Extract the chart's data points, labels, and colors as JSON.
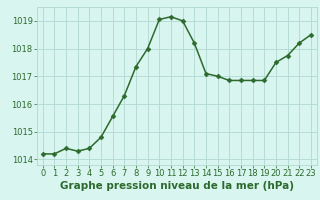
{
  "x": [
    0,
    1,
    2,
    3,
    4,
    5,
    6,
    7,
    8,
    9,
    10,
    11,
    12,
    13,
    14,
    15,
    16,
    17,
    18,
    19,
    20,
    21,
    22,
    23
  ],
  "y": [
    1014.2,
    1014.2,
    1014.4,
    1014.3,
    1014.4,
    1014.8,
    1015.55,
    1016.3,
    1017.35,
    1018.0,
    1019.05,
    1019.15,
    1019.0,
    1018.2,
    1017.1,
    1017.0,
    1016.85,
    1016.85,
    1016.85,
    1016.85,
    1017.5,
    1017.75,
    1018.2,
    1018.5
  ],
  "line_color": "#2d6a2d",
  "marker": "D",
  "marker_size": 2.5,
  "linewidth": 1.1,
  "bg_color": "#d8f5f0",
  "grid_color": "#b0d8d0",
  "xlabel": "Graphe pression niveau de la mer (hPa)",
  "xlabel_fontsize": 7.5,
  "xlabel_color": "#2d6a2d",
  "yticks": [
    1014,
    1015,
    1016,
    1017,
    1018,
    1019
  ],
  "ylim": [
    1013.8,
    1019.5
  ],
  "xlim": [
    -0.5,
    23.5
  ],
  "xticks": [
    0,
    1,
    2,
    3,
    4,
    5,
    6,
    7,
    8,
    9,
    10,
    11,
    12,
    13,
    14,
    15,
    16,
    17,
    18,
    19,
    20,
    21,
    22,
    23
  ],
  "tick_fontsize": 6.0,
  "tick_color": "#2d6a2d"
}
